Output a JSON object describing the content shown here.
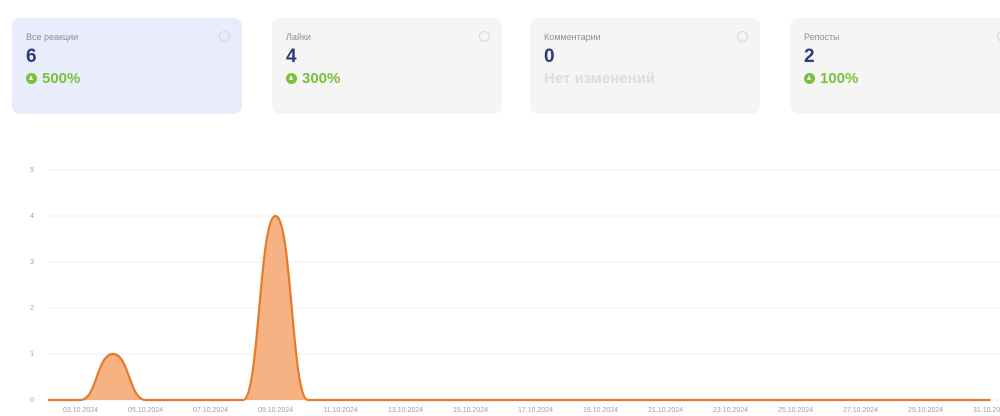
{
  "cards": [
    {
      "label": "Все реакции",
      "value": 6,
      "change": "500%"
    },
    {
      "label": "Лайки",
      "value": 4,
      "change": "300%"
    },
    {
      "label": "Комментарии",
      "value": 0,
      "change": "Нет изменений"
    },
    {
      "label": "Репосты",
      "value": 2,
      "change": "100%"
    }
  ],
  "chart_data": {
    "type": "area",
    "categories": [
      null,
      "03.10.2024",
      null,
      "05.10.2024",
      null,
      "07.10.2024",
      null,
      "09.10.2024",
      null,
      "11.10.2024",
      null,
      "13.10.2024",
      null,
      "15.10.2024",
      null,
      "17.10.2024",
      null,
      "19.10.2024",
      null,
      "21.10.2024",
      null,
      "23.10.2024",
      null,
      "25.10.2024",
      null,
      "27.10.2024",
      null,
      "29.10.2024",
      null,
      "31.10.2024"
    ],
    "values": [
      0,
      0,
      1,
      0,
      0,
      0,
      0,
      4,
      0,
      0,
      0,
      0,
      0,
      0,
      0,
      0,
      0,
      0,
      0,
      0,
      0,
      0,
      0,
      0,
      0,
      0,
      0,
      0,
      0,
      0
    ],
    "color": "#f5a46c",
    "line_color": "#e57a2c",
    "ylim": [
      0,
      5
    ],
    "yticks": [
      0,
      1,
      2,
      3,
      4,
      5
    ],
    "grid": true
  }
}
